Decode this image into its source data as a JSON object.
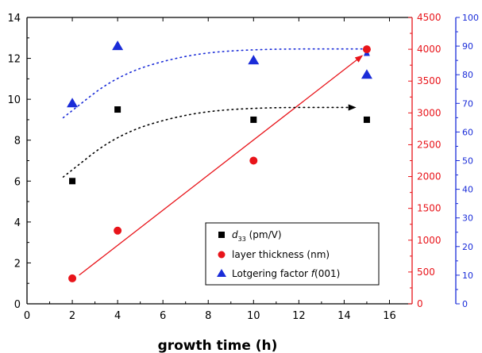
{
  "chart_data": {
    "type": "scatter",
    "xlabel": "growth time (h)",
    "xlim": [
      0,
      17
    ],
    "x_ticks": [
      0,
      2,
      4,
      6,
      8,
      10,
      12,
      14,
      16
    ],
    "y_axes": {
      "left": {
        "label": "",
        "ylim": [
          0,
          14
        ],
        "ticks": [
          0,
          2,
          4,
          6,
          8,
          10,
          12,
          14
        ],
        "color": "#000000"
      },
      "right_red": {
        "label": "",
        "ylim": [
          0,
          4500
        ],
        "ticks": [
          0,
          500,
          1000,
          1500,
          2000,
          2500,
          3000,
          3500,
          4000,
          4500
        ],
        "color": "#e8141a"
      },
      "right_blue": {
        "label": "",
        "ylim": [
          0,
          100
        ],
        "ticks": [
          0,
          10,
          20,
          30,
          40,
          50,
          60,
          70,
          80,
          90,
          100
        ],
        "color": "#1a2cd8"
      }
    },
    "series": [
      {
        "name_main": "d",
        "name_sub": "33",
        "name_rest": " (pm/V)",
        "marker": "square",
        "color": "#000000",
        "axis": "left",
        "x": [
          2,
          4,
          10,
          15
        ],
        "y": [
          6.0,
          9.5,
          9.0,
          9.0
        ]
      },
      {
        "name": "layer thickness (nm)",
        "marker": "circle",
        "color": "#e8141a",
        "axis": "right_red",
        "x": [
          2,
          4,
          10,
          15
        ],
        "y": [
          400,
          1150,
          2250,
          4000
        ]
      },
      {
        "name_main": "Lotgering factor ",
        "name_italic": "f",
        "name_rest": "(001)",
        "marker": "triangle",
        "color": "#1a2cd8",
        "axis": "right_blue",
        "x": [
          2,
          4,
          15,
          10
        ],
        "y": [
          70,
          90,
          80,
          85
        ]
      }
    ],
    "trend_lines": [
      {
        "kind": "straight-arrow",
        "color": "#e8141a",
        "axis": "right_red",
        "from": [
          2.3,
          450
        ],
        "to": [
          14.8,
          3900
        ]
      },
      {
        "kind": "dotted-curve-arrow",
        "color": "#000000",
        "axis": "left",
        "points": [
          [
            1.6,
            6.2
          ],
          [
            4,
            8.3
          ],
          [
            7,
            9.3
          ],
          [
            10,
            9.6
          ],
          [
            14.5,
            9.6
          ]
        ]
      },
      {
        "kind": "dotted-curve-arrow",
        "color": "#1a2cd8",
        "axis": "right_blue",
        "points": [
          [
            1.6,
            65
          ],
          [
            4,
            80
          ],
          [
            7,
            87
          ],
          [
            10,
            89
          ],
          [
            15,
            89
          ]
        ]
      }
    ],
    "legend_position": "bottom-right",
    "grid": false
  }
}
